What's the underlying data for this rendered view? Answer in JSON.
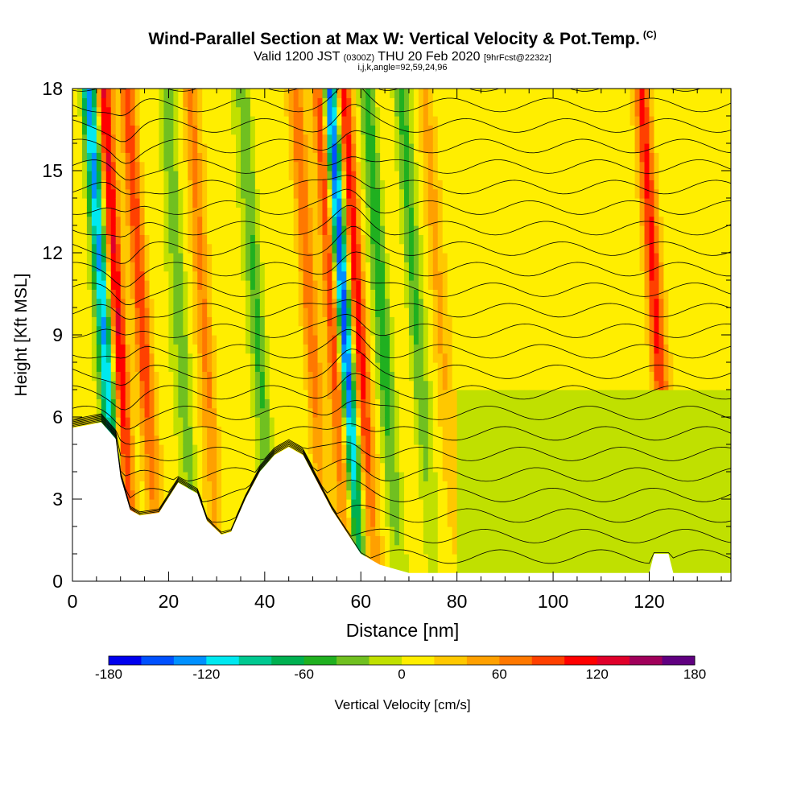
{
  "title": {
    "main": "Wind-Parallel Section at Max W: Vertical Velocity & Pot.Temp.",
    "copyright": "(C)",
    "valid_label": "Valid 1200 JST",
    "utc_time": "(0300Z)",
    "date": "THU 20 Feb 2020",
    "forecast": "[9hrFcst@2232z]",
    "indices": "i,j,k,angle=92,59,24,96"
  },
  "colorbar": {
    "label": "Vertical Velocity [cm/s]",
    "ticks": [
      "-180",
      "-120",
      "-60",
      "0",
      "60",
      "120",
      "180"
    ],
    "colors": [
      "#0000ee",
      "#0050ff",
      "#0090ff",
      "#00e8f0",
      "#00c890",
      "#00b050",
      "#20b020",
      "#70c020",
      "#c0e000",
      "#ffee00",
      "#ffc800",
      "#ffa000",
      "#ff7800",
      "#ff4000",
      "#ff0000",
      "#e0002a",
      "#a0005a",
      "#600080"
    ]
  },
  "chart_data": {
    "type": "heatmap",
    "title": "Wind-Parallel Section at Max W: Vertical Velocity & Pot.Temp.",
    "xlabel": "Distance [nm]",
    "ylabel": "Height [Kft MSL]",
    "xlim": [
      0,
      137
    ],
    "ylim": [
      0,
      18
    ],
    "x_ticks": [
      "0",
      "20",
      "40",
      "60",
      "80",
      "100",
      "120"
    ],
    "y_ticks": [
      "0",
      "3",
      "6",
      "9",
      "12",
      "15",
      "18"
    ],
    "color_range": [
      -180,
      180
    ],
    "colorbar_label": "Vertical Velocity [cm/s]",
    "updraft_cores": [
      {
        "x": 11,
        "w_max": 120
      },
      {
        "x": 16,
        "w_max": 80
      },
      {
        "x": 29,
        "w_max": 60
      },
      {
        "x": 51,
        "w_max": 60
      },
      {
        "x": 56,
        "w_max": 110
      },
      {
        "x": 61,
        "w_max": 100
      },
      {
        "x": 78,
        "w_max": 30
      },
      {
        "x": 123,
        "w_max": 90
      }
    ],
    "downdraft_cores": [
      {
        "x": 8,
        "w_min": -140
      },
      {
        "x": 24,
        "w_min": -50
      },
      {
        "x": 40,
        "w_min": -50
      },
      {
        "x": 58,
        "w_min": -180
      },
      {
        "x": 66,
        "w_min": -60
      },
      {
        "x": 73,
        "w_min": -50
      }
    ],
    "terrain_kft": [
      [
        0,
        5.6
      ],
      [
        6,
        5.8
      ],
      [
        9,
        5.2
      ],
      [
        10,
        3.8
      ],
      [
        12,
        2.6
      ],
      [
        14,
        2.4
      ],
      [
        18,
        2.5
      ],
      [
        22,
        3.6
      ],
      [
        26,
        3.2
      ],
      [
        28,
        2.2
      ],
      [
        31,
        1.7
      ],
      [
        33,
        1.8
      ],
      [
        36,
        3.0
      ],
      [
        39,
        4.0
      ],
      [
        42,
        4.6
      ],
      [
        45,
        4.9
      ],
      [
        48,
        4.6
      ],
      [
        51,
        3.6
      ],
      [
        54,
        2.6
      ],
      [
        57,
        1.8
      ],
      [
        60,
        1.0
      ],
      [
        64,
        0.6
      ],
      [
        70,
        0.3
      ],
      [
        80,
        0.3
      ],
      [
        100,
        0.3
      ],
      [
        120,
        0.3
      ],
      [
        121,
        1.0
      ],
      [
        124,
        1.0
      ],
      [
        125,
        0.3
      ],
      [
        137,
        0.3
      ]
    ]
  }
}
